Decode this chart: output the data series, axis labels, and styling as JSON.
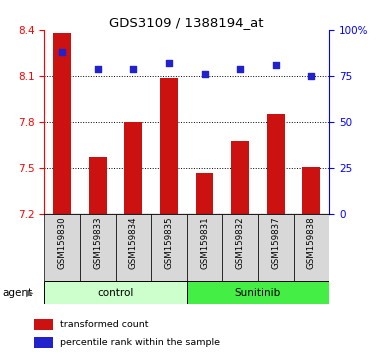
{
  "title": "GDS3109 / 1388194_at",
  "samples": [
    "GSM159830",
    "GSM159833",
    "GSM159834",
    "GSM159835",
    "GSM159831",
    "GSM159832",
    "GSM159837",
    "GSM159838"
  ],
  "bar_values": [
    8.38,
    7.57,
    7.8,
    8.09,
    7.47,
    7.68,
    7.85,
    7.51
  ],
  "dot_values": [
    88,
    79,
    79,
    82,
    76,
    79,
    81,
    75
  ],
  "ylim_left": [
    7.2,
    8.4
  ],
  "ylim_right": [
    0,
    100
  ],
  "yticks_left": [
    7.2,
    7.5,
    7.8,
    8.1,
    8.4
  ],
  "yticks_right": [
    0,
    25,
    50,
    75,
    100
  ],
  "ytick_right_labels": [
    "0",
    "25",
    "50",
    "75",
    "100%"
  ],
  "bar_color": "#cc1111",
  "dot_color": "#2222cc",
  "groups": [
    {
      "label": "control",
      "indices": [
        0,
        1,
        2,
        3
      ],
      "color": "#ccffcc"
    },
    {
      "label": "Sunitinib",
      "indices": [
        4,
        5,
        6,
        7
      ],
      "color": "#44ee44"
    }
  ],
  "group_label": "agent",
  "legend_bar": "transformed count",
  "legend_dot": "percentile rank within the sample",
  "sample_box_color": "#d8d8d8",
  "plot_bg": "#ffffff"
}
